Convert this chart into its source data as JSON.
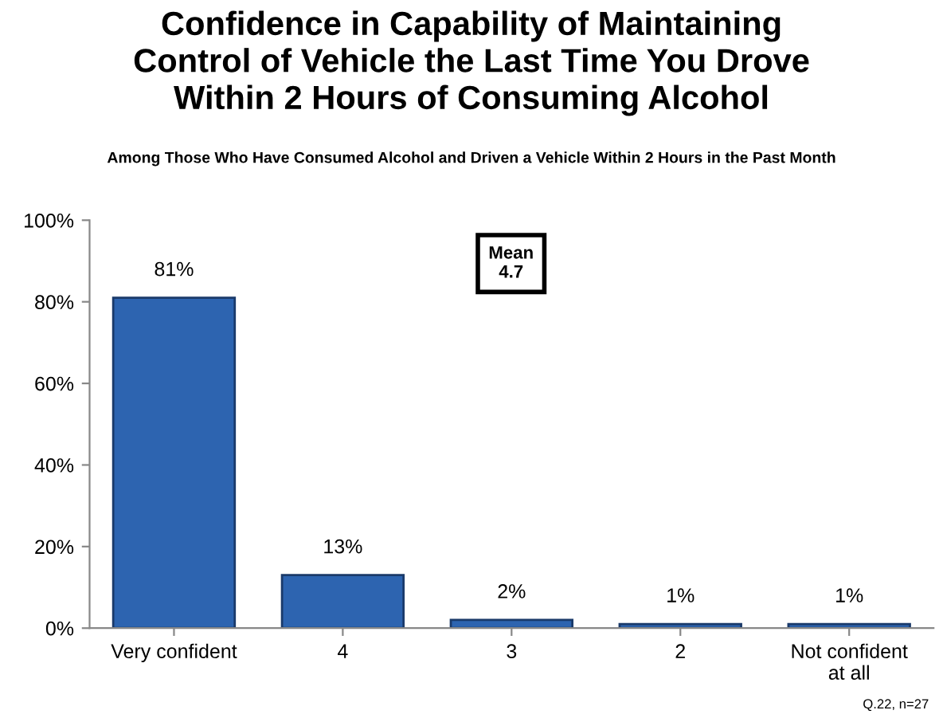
{
  "chart_data": {
    "type": "bar",
    "title": "Confidence in Capability of Maintaining\nControl of Vehicle the Last Time You Drove\nWithin 2 Hours of Consuming Alcohol",
    "subtitle": "Among Those Who Have Consumed Alcohol and Driven a Vehicle Within 2 Hours in the Past Month",
    "categories": [
      "Very confident",
      "4",
      "3",
      "2",
      "Not confident\nat all"
    ],
    "values": [
      81,
      13,
      2,
      1,
      1
    ],
    "value_labels": [
      "81%",
      "13%",
      "2%",
      "1%",
      "1%"
    ],
    "color": "#2d64b0",
    "ylim": [
      0,
      100
    ],
    "yticks": [
      {
        "value": 0,
        "label": "0%"
      },
      {
        "value": 20,
        "label": "20%"
      },
      {
        "value": 40,
        "label": "40%"
      },
      {
        "value": 60,
        "label": "60%"
      },
      {
        "value": 80,
        "label": "80%"
      },
      {
        "value": 100,
        "label": "100%"
      }
    ],
    "grid": false,
    "annotations": [
      "Mean",
      "4.7",
      "Q.22, n=27"
    ]
  }
}
